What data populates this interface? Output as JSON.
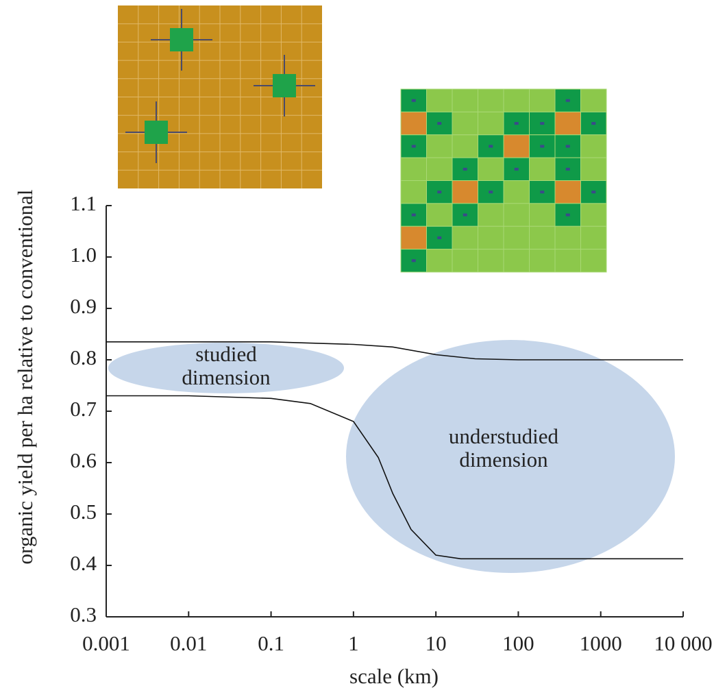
{
  "chart_data": {
    "type": "line",
    "xscale": "log",
    "x_label": "scale (km)",
    "y_label": "organic yield per ha relative to conventional",
    "xlim": [
      0.001,
      10000
    ],
    "xticks": [
      0.001,
      0.01,
      0.1,
      1,
      10,
      100,
      1000,
      {
        "value": 10000,
        "label": "10 000"
      }
    ],
    "ylim": [
      0.3,
      1.1
    ],
    "yticks": [
      0.3,
      0.4,
      0.5,
      0.6,
      0.7,
      0.8,
      0.9,
      {
        "value": 1,
        "label": "1.0"
      },
      1.1
    ],
    "grid": false,
    "series": [
      {
        "color": "#111111",
        "x": [
          0.001,
          0.1,
          1,
          3,
          10,
          30,
          100,
          10000
        ],
        "values": [
          0.835,
          0.835,
          0.83,
          0.825,
          0.81,
          0.802,
          0.8,
          0.8
        ]
      },
      {
        "color": "#111111",
        "x": [
          0.001,
          0.01,
          0.1,
          0.3,
          1,
          2,
          3,
          5,
          10,
          20,
          100,
          10000
        ],
        "values": [
          0.73,
          0.73,
          0.725,
          0.715,
          0.68,
          0.61,
          0.54,
          0.47,
          0.42,
          0.413,
          0.413,
          0.413
        ]
      }
    ],
    "annotations": [
      {
        "lines": [
          "studied",
          "dimension"
        ]
      },
      {
        "lines": [
          "understudied",
          "dimension"
        ]
      }
    ]
  }
}
